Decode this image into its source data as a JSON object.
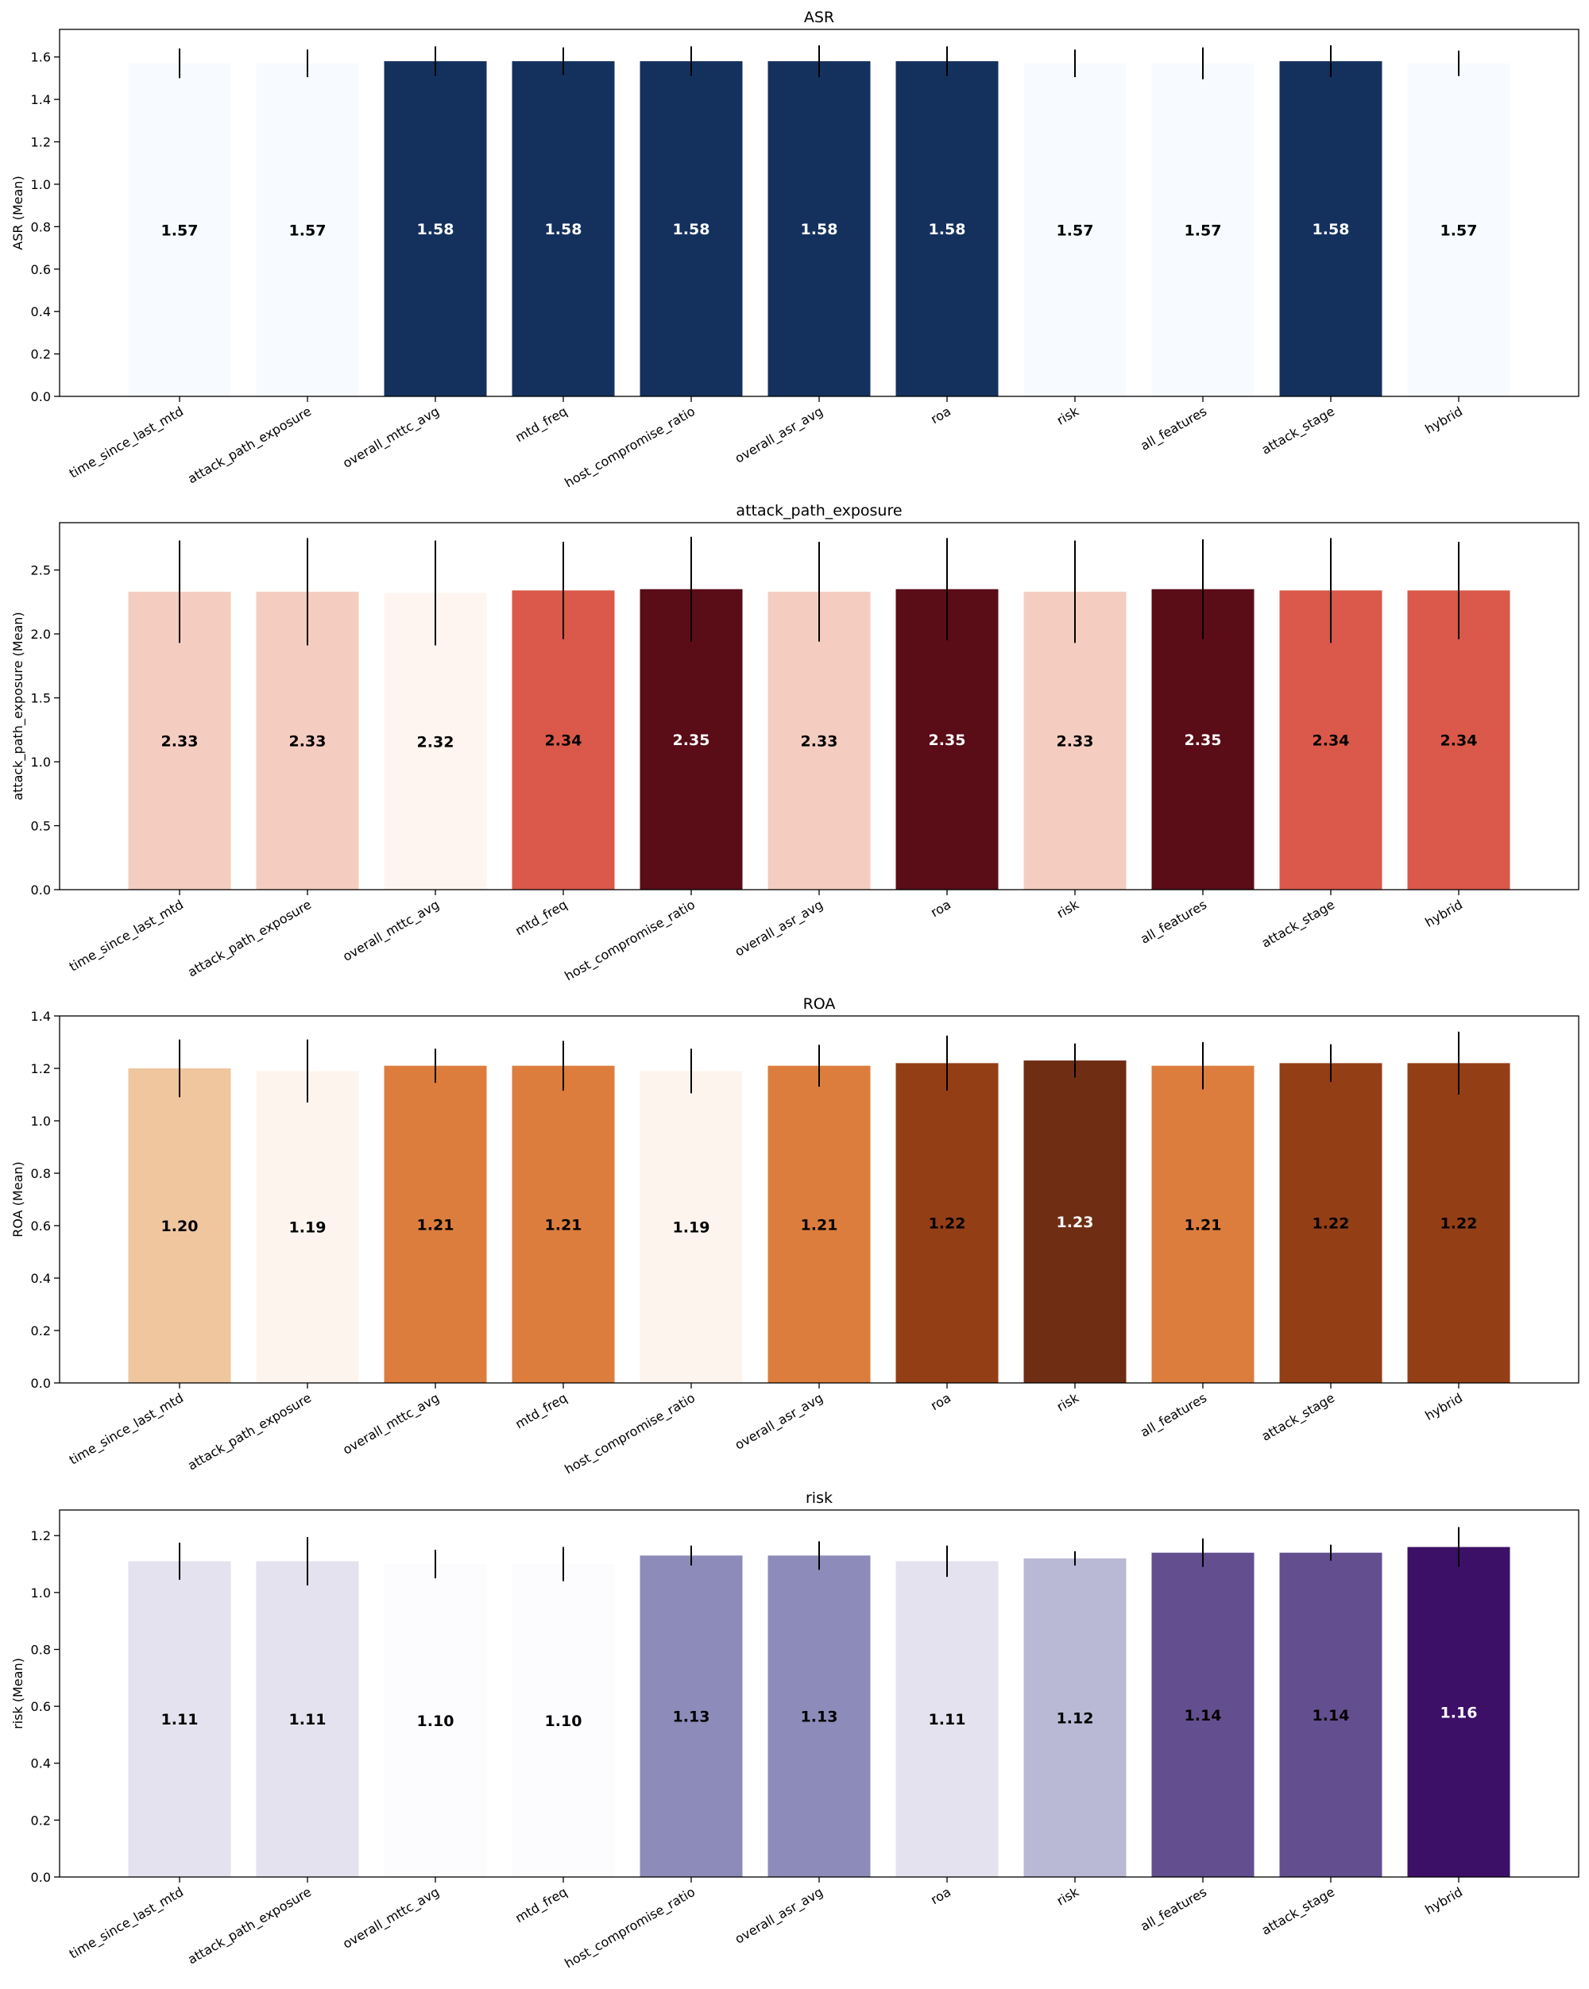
{
  "categories": [
    "time_since_last_mtd",
    "attack_path_exposure",
    "overall_mttc_avg",
    "mtd_freq",
    "host_compromise_ratio",
    "overall_asr_avg",
    "roa",
    "risk",
    "all_features",
    "attack_stage",
    "hybrid"
  ],
  "chart_data": [
    {
      "type": "bar",
      "title": "ASR",
      "ylabel": "ASR (Mean)",
      "ylim": [
        0,
        1.73
      ],
      "yticks": [
        0.0,
        0.2,
        0.4,
        0.6,
        0.8,
        1.0,
        1.2,
        1.4,
        1.6
      ],
      "tick_labels": [
        "0.0",
        "0.2",
        "0.4",
        "0.6",
        "0.8",
        "1.0",
        "1.2",
        "1.4",
        "1.6"
      ],
      "values": [
        1.57,
        1.57,
        1.58,
        1.58,
        1.58,
        1.58,
        1.58,
        1.57,
        1.57,
        1.58,
        1.57
      ],
      "value_labels": [
        "1.57",
        "1.57",
        "1.58",
        "1.58",
        "1.58",
        "1.58",
        "1.58",
        "1.57",
        "1.57",
        "1.58",
        "1.57"
      ],
      "errors": [
        0.07,
        0.065,
        0.07,
        0.065,
        0.07,
        0.075,
        0.07,
        0.065,
        0.075,
        0.075,
        0.06
      ],
      "colors": [
        "#f7fbff",
        "#f7fbff",
        "#14315e",
        "#14315e",
        "#14315e",
        "#14315e",
        "#14315e",
        "#f7fbff",
        "#f7fbff",
        "#14315e",
        "#f7fbff"
      ],
      "label_colors": [
        "#000000",
        "#000000",
        "#ffffff",
        "#ffffff",
        "#ffffff",
        "#ffffff",
        "#ffffff",
        "#000000",
        "#000000",
        "#ffffff",
        "#000000"
      ]
    },
    {
      "type": "bar",
      "title": "attack_path_exposure",
      "ylabel": "attack_path_exposure (Mean)",
      "ylim": [
        0,
        2.87
      ],
      "yticks": [
        0.0,
        0.5,
        1.0,
        1.5,
        2.0,
        2.5
      ],
      "tick_labels": [
        "0.0",
        "0.5",
        "1.0",
        "1.5",
        "2.0",
        "2.5"
      ],
      "values": [
        2.33,
        2.33,
        2.32,
        2.34,
        2.35,
        2.33,
        2.35,
        2.33,
        2.35,
        2.34,
        2.34
      ],
      "value_labels": [
        "2.33",
        "2.33",
        "2.32",
        "2.34",
        "2.35",
        "2.33",
        "2.35",
        "2.33",
        "2.35",
        "2.34",
        "2.34"
      ],
      "errors": [
        0.4,
        0.42,
        0.41,
        0.38,
        0.41,
        0.39,
        0.4,
        0.4,
        0.39,
        0.41,
        0.38
      ],
      "colors": [
        "#f4cdc0",
        "#f4cdc0",
        "#fff5f0",
        "#da594a",
        "#5a0c17",
        "#f4cdc0",
        "#5a0c17",
        "#f4cdc0",
        "#5a0c17",
        "#da594a",
        "#da594a"
      ],
      "label_colors": [
        "#000000",
        "#000000",
        "#000000",
        "#000000",
        "#ffffff",
        "#000000",
        "#ffffff",
        "#000000",
        "#ffffff",
        "#000000",
        "#000000"
      ]
    },
    {
      "type": "bar",
      "title": "ROA",
      "ylabel": "ROA (Mean)",
      "ylim": [
        0,
        1.4
      ],
      "yticks": [
        0.0,
        0.2,
        0.4,
        0.6,
        0.8,
        1.0,
        1.2,
        1.4
      ],
      "tick_labels": [
        "0.0",
        "0.2",
        "0.4",
        "0.6",
        "0.8",
        "1.0",
        "1.2",
        "1.4"
      ],
      "values": [
        1.2,
        1.19,
        1.21,
        1.21,
        1.19,
        1.21,
        1.22,
        1.23,
        1.21,
        1.22,
        1.22
      ],
      "value_labels": [
        "1.20",
        "1.19",
        "1.21",
        "1.21",
        "1.19",
        "1.21",
        "1.22",
        "1.23",
        "1.21",
        "1.22",
        "1.22"
      ],
      "errors": [
        0.11,
        0.12,
        0.065,
        0.095,
        0.085,
        0.08,
        0.105,
        0.065,
        0.09,
        0.072,
        0.12
      ],
      "colors": [
        "#f0c69e",
        "#fdf4ee",
        "#dc7d3d",
        "#dc7d3d",
        "#fdf4ee",
        "#dc7d3d",
        "#943e16",
        "#6f2d13",
        "#dc7d3d",
        "#943e16",
        "#943e16"
      ],
      "label_colors": [
        "#000000",
        "#000000",
        "#000000",
        "#000000",
        "#000000",
        "#000000",
        "#000000",
        "#ffffff",
        "#000000",
        "#000000",
        "#000000"
      ]
    },
    {
      "type": "bar",
      "title": "risk",
      "ylabel": "risk (Mean)",
      "ylim": [
        0,
        1.29
      ],
      "yticks": [
        0.0,
        0.2,
        0.4,
        0.6,
        0.8,
        1.0,
        1.2
      ],
      "tick_labels": [
        "0.0",
        "0.2",
        "0.4",
        "0.6",
        "0.8",
        "1.0",
        "1.2"
      ],
      "values": [
        1.11,
        1.11,
        1.1,
        1.1,
        1.13,
        1.13,
        1.11,
        1.12,
        1.14,
        1.14,
        1.16
      ],
      "value_labels": [
        "1.11",
        "1.11",
        "1.10",
        "1.10",
        "1.13",
        "1.13",
        "1.11",
        "1.12",
        "1.14",
        "1.14",
        "1.16"
      ],
      "errors": [
        0.065,
        0.085,
        0.05,
        0.06,
        0.035,
        0.05,
        0.055,
        0.025,
        0.05,
        0.028,
        0.07
      ],
      "colors": [
        "#e3e2ee",
        "#e3e2ee",
        "#fcfbfd",
        "#fcfbfd",
        "#8c8bb9",
        "#8c8bb9",
        "#e3e2ee",
        "#b9b9d6",
        "#634e8f",
        "#634e8f",
        "#3c1067"
      ],
      "label_colors": [
        "#000000",
        "#000000",
        "#000000",
        "#000000",
        "#000000",
        "#000000",
        "#000000",
        "#000000",
        "#000000",
        "#000000",
        "#ffffff"
      ]
    }
  ]
}
